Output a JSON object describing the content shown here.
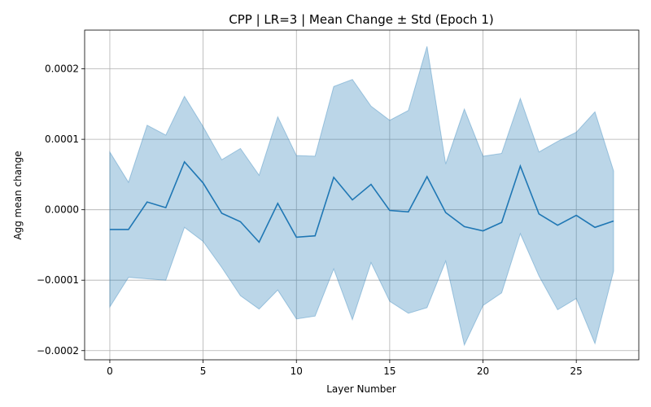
{
  "chart_data": {
    "type": "line",
    "title": "CPP | LR=3 | Mean Change ± Std (Epoch 1)",
    "xlabel": "Layer Number",
    "ylabel": "Agg mean change",
    "xlim": [
      -1.35,
      28.35
    ],
    "ylim": [
      -0.000213,
      0.000255
    ],
    "grid": true,
    "x_ticks": [
      0,
      5,
      10,
      15,
      20,
      25
    ],
    "x_tick_labels": [
      "0",
      "5",
      "10",
      "15",
      "20",
      "25"
    ],
    "y_ticks": [
      -0.0002,
      -0.0001,
      0.0,
      0.0001,
      0.0002
    ],
    "y_tick_labels": [
      "−0.0002",
      "−0.0001",
      "0.0000",
      "0.0001",
      "0.0002"
    ],
    "colors": {
      "line": "#1f77b4",
      "band": "#1f77b4"
    },
    "series": [
      {
        "x": [
          0,
          1,
          2,
          3,
          4,
          5,
          6,
          7,
          8,
          9,
          10,
          11,
          12,
          13,
          14,
          15,
          16,
          17,
          18,
          19,
          20,
          21,
          22,
          23,
          24,
          25,
          26,
          27
        ],
        "mean": [
          -2.8e-05,
          -2.8e-05,
          1.1e-05,
          3e-06,
          6.8e-05,
          3.8e-05,
          -5e-06,
          -1.7e-05,
          -4.6e-05,
          9e-06,
          -3.9e-05,
          -3.7e-05,
          4.6e-05,
          1.4e-05,
          3.6e-05,
          -1e-06,
          -3e-06,
          4.7e-05,
          -4e-06,
          -2.4e-05,
          -3e-05,
          -1.8e-05,
          6.2e-05,
          -6e-06,
          -2.2e-05,
          -8e-06,
          -2.5e-05,
          -1.6e-05
        ],
        "upper": [
          8.2e-05,
          3.9e-05,
          0.00012,
          0.000106,
          0.000161,
          0.000118,
          7.1e-05,
          8.7e-05,
          4.9e-05,
          0.000132,
          7.7e-05,
          7.6e-05,
          0.000175,
          0.000185,
          0.000147,
          0.000127,
          0.000141,
          0.000232,
          6.5e-05,
          0.000143,
          7.6e-05,
          8e-05,
          0.000158,
          8.2e-05,
          9.7e-05,
          0.00011,
          0.000139,
          5.5e-05
        ],
        "lower": [
          -0.000138,
          -9.6e-05,
          -9.8e-05,
          -0.0001,
          -2.5e-05,
          -4.5e-05,
          -8.2e-05,
          -0.000122,
          -0.000141,
          -0.000114,
          -0.000155,
          -0.000151,
          -8.4e-05,
          -0.000156,
          -7.5e-05,
          -0.00013,
          -0.000147,
          -0.000139,
          -7.3e-05,
          -0.000192,
          -0.000136,
          -0.000118,
          -3.4e-05,
          -9.4e-05,
          -0.000142,
          -0.000126,
          -0.00019,
          -8.7e-05
        ]
      }
    ]
  }
}
